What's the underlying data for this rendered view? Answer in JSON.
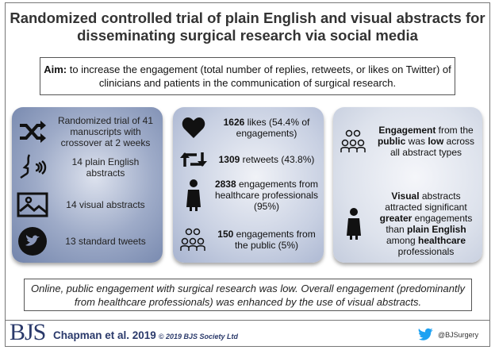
{
  "title": "Randomized controlled trial of plain English and visual abstracts for disseminating surgical research via social media",
  "aim": {
    "label": "Aim:",
    "text": " to increase the engagement (total number of replies, retweets, or likes on Twitter) of clinicians and patients in the communication of surgical research."
  },
  "panel1": [
    {
      "icon": "shuffle-icon",
      "text": "Randomized trial of 41 manuscripts with crossover at 2 weeks"
    },
    {
      "icon": "speaking-head-icon",
      "text": "14 plain English abstracts"
    },
    {
      "icon": "image-icon",
      "text": "14 visual abstracts"
    },
    {
      "icon": "twitter-icon",
      "text": "13 standard tweets"
    }
  ],
  "panel2": [
    {
      "icon": "heart-icon",
      "num": "1626",
      "text": " likes (54.4% of engagements)"
    },
    {
      "icon": "retweet-icon",
      "num": "1309",
      "text": " retweets (43.8%)"
    },
    {
      "icon": "surgeon-icon",
      "num": "2838",
      "text": " engagements from healthcare professionals (95%)"
    },
    {
      "icon": "group-icon",
      "num": "150",
      "text": " engagements from the public (5%)"
    }
  ],
  "panel3": {
    "f1": {
      "icon": "group-icon",
      "b1": "Engagement",
      "t1": " from the ",
      "b2": "public",
      "t2": " was ",
      "b3": "low",
      "t3": " across all abstract types"
    },
    "f2": {
      "icon": "surgeon-icon",
      "b1": "Visual",
      "t1": " abstracts attracted significant ",
      "b2": "greater",
      "t2": " engagements than ",
      "b3": "plain English",
      "t3": " among ",
      "b4": "healthcare",
      "t4": " professionals"
    }
  },
  "conclusion": "Online, public engagement with surgical research was low. Overall engagement (predominantly from healthcare professionals) was enhanced by the use of visual abstracts.",
  "footer": {
    "logo": "BJS",
    "citation": "Chapman et al. 2019",
    "copyright": "© 2019 BJS Society Ltd",
    "twitter": "@BJSurgery",
    "twitter_color": "#1da1f2"
  }
}
